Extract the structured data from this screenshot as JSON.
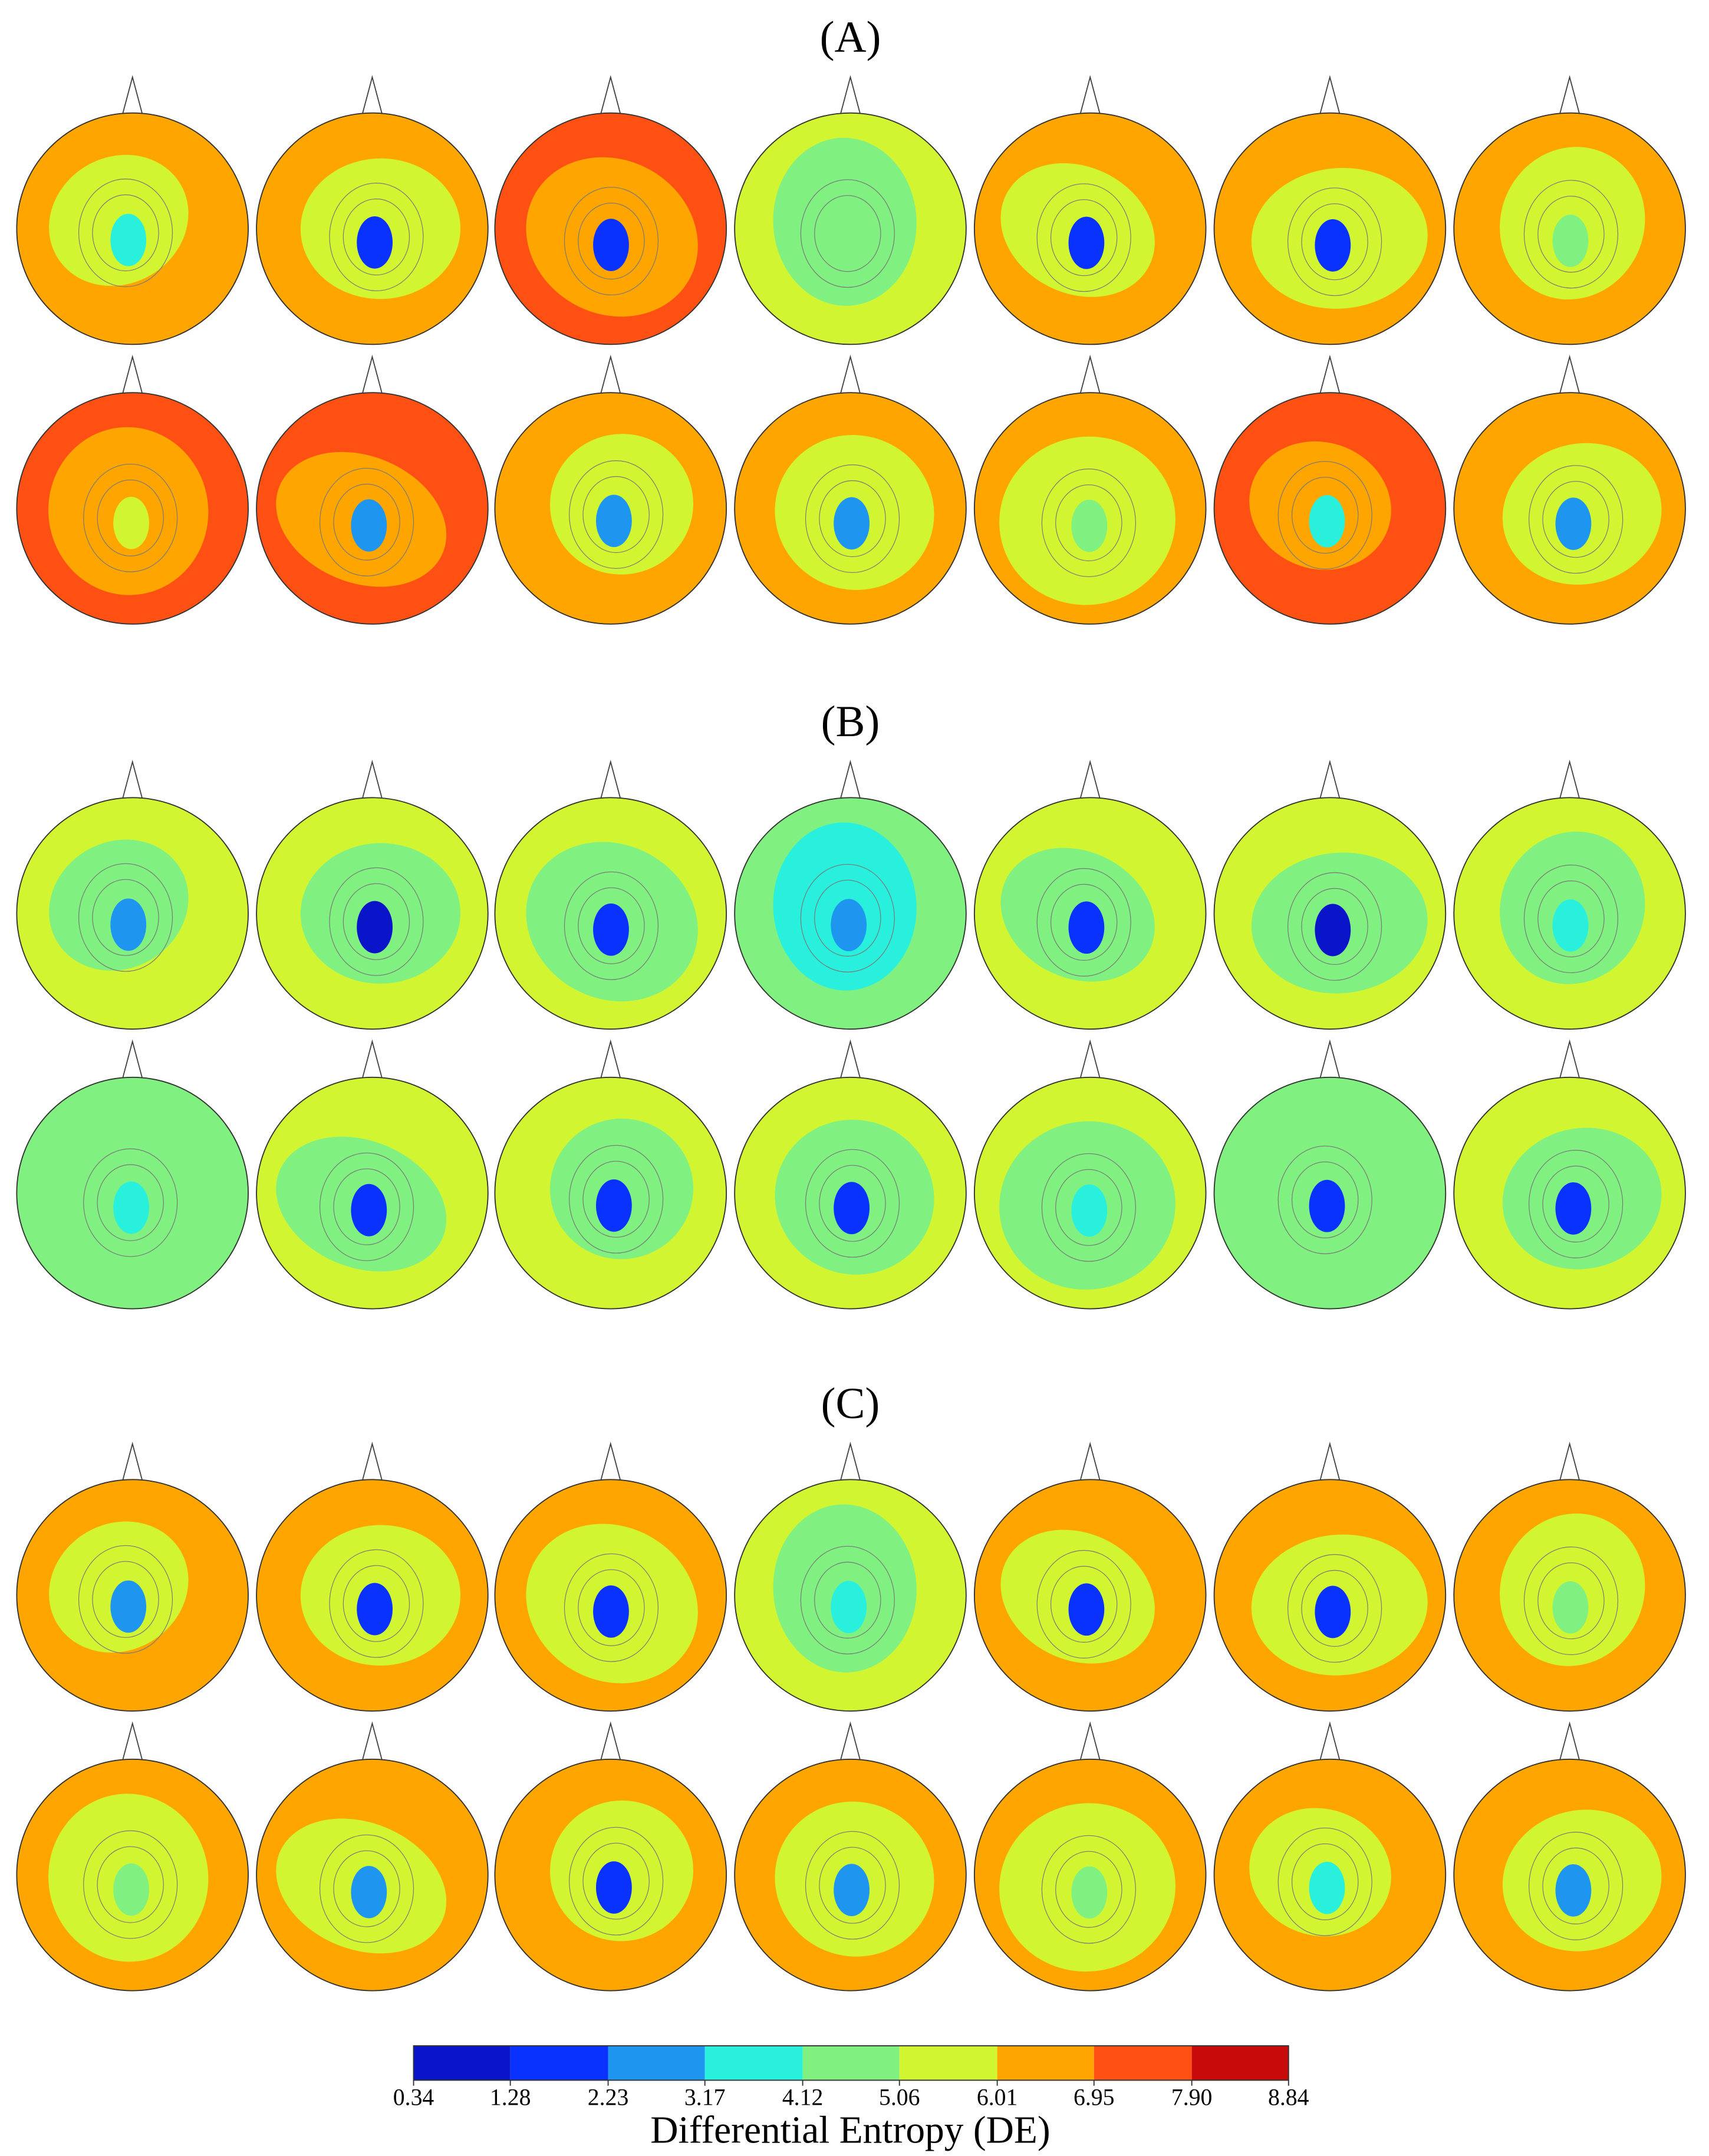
{
  "chart_data": {
    "type": "topomap",
    "panels": [
      {
        "label": "(A)",
        "maps": [
          {
            "edge": 6.5,
            "middle": 5.5,
            "center": 3.6
          },
          {
            "edge": 6.5,
            "middle": 5.5,
            "center": 1.8
          },
          {
            "edge": 7.4,
            "middle": 6.5,
            "center": 1.8
          },
          {
            "edge": 5.5,
            "middle": 4.6,
            "center": 4.6
          },
          {
            "edge": 6.5,
            "middle": 5.5,
            "center": 1.8
          },
          {
            "edge": 6.5,
            "middle": 5.5,
            "center": 1.8
          },
          {
            "edge": 6.5,
            "middle": 5.5,
            "center": 4.6
          },
          {
            "edge": 7.4,
            "middle": 6.5,
            "center": 5.5
          },
          {
            "edge": 7.4,
            "middle": 6.5,
            "center": 2.7
          },
          {
            "edge": 6.5,
            "middle": 5.5,
            "center": 2.7
          },
          {
            "edge": 6.5,
            "middle": 5.5,
            "center": 2.7
          },
          {
            "edge": 6.5,
            "middle": 5.5,
            "center": 4.6
          },
          {
            "edge": 7.4,
            "middle": 6.5,
            "center": 3.6
          },
          {
            "edge": 6.5,
            "middle": 5.5,
            "center": 2.7
          }
        ]
      },
      {
        "label": "(B)",
        "maps": [
          {
            "edge": 5.5,
            "middle": 4.6,
            "center": 2.7
          },
          {
            "edge": 5.5,
            "middle": 4.6,
            "center": 0.8
          },
          {
            "edge": 5.5,
            "middle": 4.6,
            "center": 1.8
          },
          {
            "edge": 4.6,
            "middle": 3.6,
            "center": 2.7
          },
          {
            "edge": 5.5,
            "middle": 4.6,
            "center": 1.8
          },
          {
            "edge": 5.5,
            "middle": 4.6,
            "center": 0.8
          },
          {
            "edge": 5.5,
            "middle": 4.6,
            "center": 3.6
          },
          {
            "edge": 4.6,
            "middle": 4.6,
            "center": 3.6
          },
          {
            "edge": 5.5,
            "middle": 4.6,
            "center": 1.8
          },
          {
            "edge": 5.5,
            "middle": 4.6,
            "center": 1.8
          },
          {
            "edge": 5.5,
            "middle": 4.6,
            "center": 1.8
          },
          {
            "edge": 5.5,
            "middle": 4.6,
            "center": 3.6
          },
          {
            "edge": 4.6,
            "middle": 4.6,
            "center": 1.8
          },
          {
            "edge": 5.5,
            "middle": 4.6,
            "center": 1.8
          }
        ]
      },
      {
        "label": "(C)",
        "maps": [
          {
            "edge": 6.5,
            "middle": 5.5,
            "center": 2.7
          },
          {
            "edge": 6.5,
            "middle": 5.5,
            "center": 1.8
          },
          {
            "edge": 6.5,
            "middle": 5.5,
            "center": 1.8
          },
          {
            "edge": 5.5,
            "middle": 4.6,
            "center": 3.6
          },
          {
            "edge": 6.5,
            "middle": 5.5,
            "center": 1.8
          },
          {
            "edge": 6.5,
            "middle": 5.5,
            "center": 1.8
          },
          {
            "edge": 6.5,
            "middle": 5.5,
            "center": 4.6
          },
          {
            "edge": 6.5,
            "middle": 5.5,
            "center": 4.6
          },
          {
            "edge": 6.5,
            "middle": 5.5,
            "center": 2.7
          },
          {
            "edge": 6.5,
            "middle": 5.5,
            "center": 1.8
          },
          {
            "edge": 6.5,
            "middle": 5.5,
            "center": 2.7
          },
          {
            "edge": 6.5,
            "middle": 5.5,
            "center": 4.6
          },
          {
            "edge": 6.5,
            "middle": 5.5,
            "center": 3.6
          },
          {
            "edge": 6.5,
            "middle": 5.5,
            "center": 2.7
          }
        ]
      }
    ],
    "colorbar": {
      "title": "Differential Entropy (DE)",
      "ticks": [
        0.34,
        1.28,
        2.23,
        3.17,
        4.12,
        5.06,
        6.01,
        6.95,
        {
          "value": 7.9,
          "label": "7.90"
        },
        8.84
      ],
      "colors": [
        "#0a14c8",
        "#0a32ff",
        "#1e96f0",
        "#28f0dc",
        "#80f080",
        "#d2f532",
        "#ffa500",
        "#ff5014",
        "#c80a0a"
      ]
    }
  }
}
